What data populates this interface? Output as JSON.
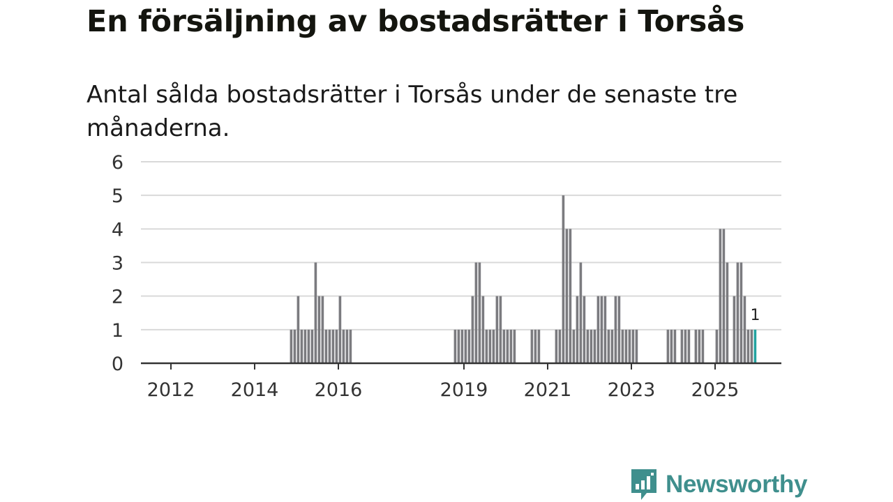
{
  "header": {
    "title": "En försäljning av bostadsrätter i Torsås",
    "subtitle": "Antal sålda bostadsrätter i Torsås under de senaste tre månaderna."
  },
  "brand": {
    "name": "Newsworthy",
    "icon": "newsworthy-logo-icon",
    "color": "#3f8f8d"
  },
  "chart_data": {
    "type": "bar",
    "title": "",
    "xlabel": "",
    "ylabel": "",
    "ylim": [
      0,
      6
    ],
    "yticks": [
      0,
      1,
      2,
      3,
      4,
      5,
      6
    ],
    "xticks": [
      "2012",
      "2014",
      "2016",
      "2019",
      "2021",
      "2023",
      "2025"
    ],
    "grid": true,
    "bar_color": "#7b7b7f",
    "highlight_color": "#23a3a0",
    "highlight_label": "1",
    "series": [
      {
        "x": [
          "2014-11",
          "2014-12",
          "2015-01",
          "2015-02",
          "2015-03",
          "2015-04",
          "2015-05",
          "2015-06",
          "2015-07",
          "2015-08",
          "2015-09",
          "2015-10",
          "2015-11",
          "2015-12",
          "2016-01",
          "2016-02",
          "2016-03",
          "2016-04",
          "2018-10",
          "2018-11",
          "2018-12",
          "2019-01",
          "2019-02",
          "2019-03",
          "2019-04",
          "2019-05",
          "2019-06",
          "2019-07",
          "2019-08",
          "2019-09",
          "2019-10",
          "2019-11",
          "2019-12",
          "2020-01",
          "2020-02",
          "2020-03",
          "2020-08",
          "2020-09",
          "2020-10",
          "2021-03",
          "2021-04",
          "2021-05",
          "2021-06",
          "2021-07",
          "2021-08",
          "2021-09",
          "2021-10",
          "2021-11",
          "2021-12",
          "2022-01",
          "2022-02",
          "2022-03",
          "2022-04",
          "2022-05",
          "2022-06",
          "2022-07",
          "2022-08",
          "2022-09",
          "2022-10",
          "2022-11",
          "2022-12",
          "2023-01",
          "2023-02",
          "2023-11",
          "2023-12",
          "2024-01",
          "2024-03",
          "2024-04",
          "2024-05",
          "2024-07",
          "2024-08",
          "2024-09",
          "2025-01",
          "2025-02",
          "2025-03",
          "2025-04",
          "2025-06",
          "2025-07",
          "2025-08",
          "2025-09",
          "2025-10",
          "2025-11",
          "2025-12"
        ],
        "values": [
          1,
          1,
          2,
          1,
          1,
          1,
          1,
          3,
          2,
          2,
          1,
          1,
          1,
          1,
          2,
          1,
          1,
          1,
          1,
          1,
          1,
          1,
          1,
          2,
          3,
          3,
          2,
          1,
          1,
          1,
          2,
          2,
          1,
          1,
          1,
          1,
          1,
          1,
          1,
          1,
          1,
          5,
          4,
          4,
          1,
          2,
          3,
          2,
          1,
          1,
          1,
          2,
          2,
          2,
          1,
          1,
          2,
          2,
          1,
          1,
          1,
          1,
          1,
          1,
          1,
          1,
          1,
          1,
          1,
          1,
          1,
          1,
          1,
          4,
          4,
          3,
          2,
          3,
          3,
          2,
          1,
          1,
          1
        ]
      }
    ]
  }
}
